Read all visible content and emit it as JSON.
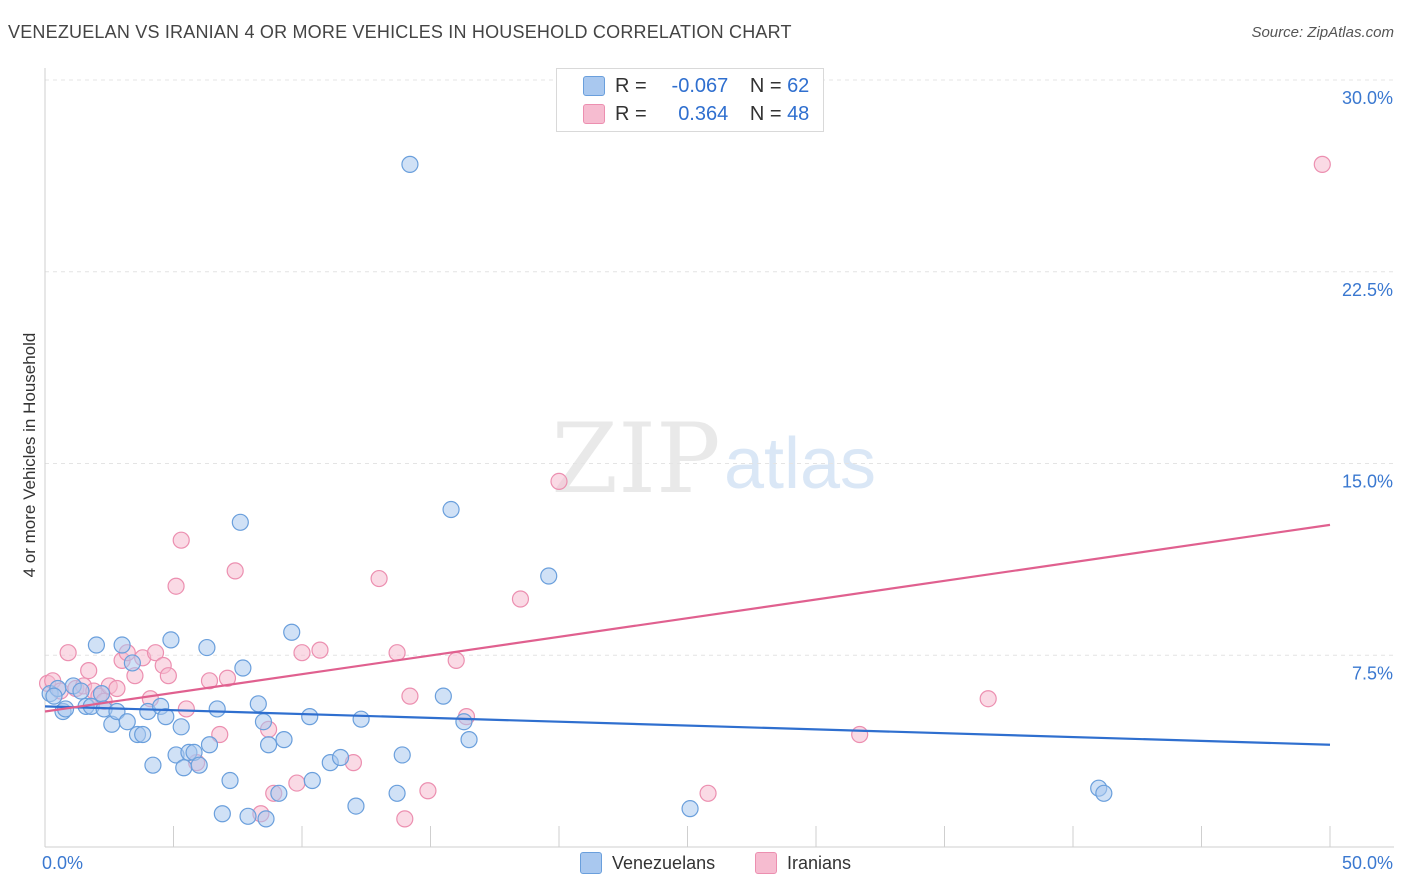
{
  "title": "VENEZUELAN VS IRANIAN 4 OR MORE VEHICLES IN HOUSEHOLD CORRELATION CHART",
  "source": "Source: ZipAtlas.com",
  "watermark": {
    "zip": "ZIP",
    "atlas": "atlas"
  },
  "legend_top": [
    {
      "r_label": "R =",
      "r_value": "-0.067",
      "n_label": "N =",
      "n_value": "62"
    },
    {
      "r_label": "R =",
      "r_value": "0.364",
      "n_label": "N =",
      "n_value": "48"
    }
  ],
  "legend_bottom": [
    "Venezuelans",
    "Iranians"
  ],
  "colors": {
    "venezuelans_fill": "#a9c8ef",
    "venezuelans_stroke": "#6a9fdc",
    "venezuelans_line": "#2f6fcf",
    "iranians_fill": "#f6bcd0",
    "iranians_stroke": "#ec8fb0",
    "iranians_line": "#e0608f",
    "tick_label": "#3a78d0",
    "grid": "#e4e4e4"
  },
  "chart_data": {
    "type": "scatter",
    "title": "VENEZUELAN VS IRANIAN 4 OR MORE VEHICLES IN HOUSEHOLD CORRELATION CHART",
    "xlabel": "",
    "ylabel": "4 or more Vehicles in Household",
    "xlim": [
      0,
      50
    ],
    "ylim": [
      0,
      30
    ],
    "x_tick_labels": [
      "0.0%",
      "50.0%"
    ],
    "y_ticks": [
      7.5,
      15.0,
      22.5,
      30.0
    ],
    "y_tick_labels": [
      "7.5%",
      "15.0%",
      "22.5%",
      "30.0%"
    ],
    "series": [
      {
        "name": "Venezuelans",
        "r": -0.067,
        "n": 62,
        "trend": {
          "x": [
            0,
            50
          ],
          "y": [
            5.5,
            4.0
          ]
        },
        "points": [
          [
            0.2,
            6.0
          ],
          [
            0.5,
            6.2
          ],
          [
            0.7,
            5.3
          ],
          [
            0.8,
            5.4
          ],
          [
            1.1,
            6.3
          ],
          [
            1.4,
            6.1
          ],
          [
            1.6,
            5.5
          ],
          [
            1.8,
            5.5
          ],
          [
            2.0,
            7.9
          ],
          [
            2.2,
            6.0
          ],
          [
            2.3,
            5.4
          ],
          [
            2.6,
            4.8
          ],
          [
            2.8,
            5.3
          ],
          [
            3.0,
            7.9
          ],
          [
            3.2,
            4.9
          ],
          [
            3.4,
            7.2
          ],
          [
            3.6,
            4.4
          ],
          [
            3.8,
            4.4
          ],
          [
            4.0,
            5.3
          ],
          [
            4.2,
            3.2
          ],
          [
            4.5,
            5.5
          ],
          [
            4.7,
            5.1
          ],
          [
            4.9,
            8.1
          ],
          [
            5.1,
            3.6
          ],
          [
            5.3,
            4.7
          ],
          [
            5.4,
            3.1
          ],
          [
            5.6,
            3.7
          ],
          [
            5.8,
            3.7
          ],
          [
            6.0,
            3.2
          ],
          [
            6.3,
            7.8
          ],
          [
            6.4,
            4.0
          ],
          [
            6.7,
            5.4
          ],
          [
            6.9,
            1.3
          ],
          [
            7.2,
            2.6
          ],
          [
            7.6,
            12.7
          ],
          [
            7.7,
            7.0
          ],
          [
            7.9,
            1.2
          ],
          [
            8.3,
            5.6
          ],
          [
            8.5,
            4.9
          ],
          [
            8.6,
            1.1
          ],
          [
            8.7,
            4.0
          ],
          [
            9.1,
            2.1
          ],
          [
            9.3,
            4.2
          ],
          [
            9.6,
            8.4
          ],
          [
            10.3,
            5.1
          ],
          [
            10.4,
            2.6
          ],
          [
            11.1,
            3.3
          ],
          [
            11.5,
            3.5
          ],
          [
            12.1,
            1.6
          ],
          [
            12.3,
            5.0
          ],
          [
            13.7,
            2.1
          ],
          [
            13.9,
            3.6
          ],
          [
            14.2,
            26.7
          ],
          [
            15.5,
            5.9
          ],
          [
            15.8,
            13.2
          ],
          [
            16.3,
            4.9
          ],
          [
            16.5,
            4.2
          ],
          [
            19.6,
            10.6
          ],
          [
            25.1,
            1.5
          ],
          [
            41.0,
            2.3
          ],
          [
            41.2,
            2.1
          ],
          [
            0.35,
            5.9
          ]
        ]
      },
      {
        "name": "Iranians",
        "r": 0.364,
        "n": 48,
        "trend": {
          "x": [
            0,
            50
          ],
          "y": [
            5.3,
            12.6
          ]
        },
        "points": [
          [
            0.1,
            6.4
          ],
          [
            0.3,
            6.5
          ],
          [
            0.6,
            6.1
          ],
          [
            0.9,
            7.6
          ],
          [
            1.2,
            6.2
          ],
          [
            1.5,
            6.3
          ],
          [
            1.7,
            6.9
          ],
          [
            1.9,
            6.1
          ],
          [
            2.1,
            5.9
          ],
          [
            2.3,
            5.7
          ],
          [
            2.5,
            6.3
          ],
          [
            2.8,
            6.2
          ],
          [
            3.0,
            7.3
          ],
          [
            3.2,
            7.6
          ],
          [
            3.5,
            6.7
          ],
          [
            3.8,
            7.4
          ],
          [
            4.1,
            5.8
          ],
          [
            4.3,
            7.6
          ],
          [
            4.6,
            7.1
          ],
          [
            4.8,
            6.7
          ],
          [
            5.1,
            10.2
          ],
          [
            5.3,
            12.0
          ],
          [
            5.5,
            5.4
          ],
          [
            5.9,
            3.3
          ],
          [
            6.4,
            6.5
          ],
          [
            6.8,
            4.4
          ],
          [
            7.1,
            6.6
          ],
          [
            7.4,
            10.8
          ],
          [
            8.4,
            1.3
          ],
          [
            8.7,
            4.6
          ],
          [
            8.9,
            2.1
          ],
          [
            9.8,
            2.5
          ],
          [
            10.0,
            7.6
          ],
          [
            10.7,
            7.7
          ],
          [
            12.0,
            3.3
          ],
          [
            13.0,
            10.5
          ],
          [
            13.7,
            7.6
          ],
          [
            14.0,
            1.1
          ],
          [
            14.2,
            5.9
          ],
          [
            14.9,
            2.2
          ],
          [
            16.0,
            7.3
          ],
          [
            16.4,
            5.1
          ],
          [
            20.0,
            14.3
          ],
          [
            18.5,
            9.7
          ],
          [
            25.8,
            2.1
          ],
          [
            31.7,
            4.4
          ],
          [
            36.7,
            5.8
          ],
          [
            49.7,
            26.7
          ]
        ]
      }
    ]
  }
}
